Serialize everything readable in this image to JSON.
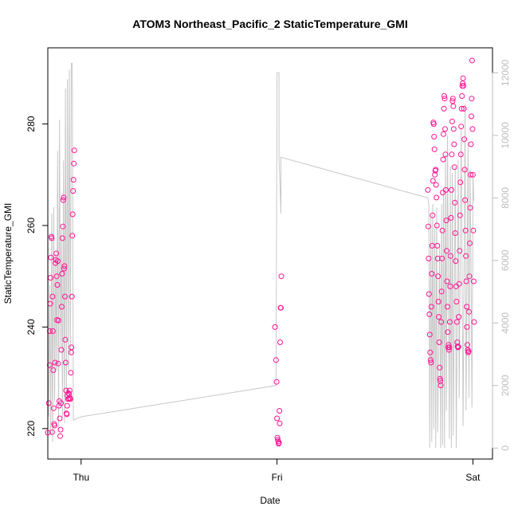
{
  "chart_data": {
    "type": "scatter",
    "title": "ATOM3 Northeast_Pacific_2 StaticTemperature_GMI",
    "xlabel": "Date",
    "ylabel": "StaticTemperature_GMI",
    "x_ticks": [
      {
        "label": "Thu",
        "day": 0
      },
      {
        "label": "Fri",
        "day": 1
      },
      {
        "label": "Sat",
        "day": 2
      }
    ],
    "xlim_days": [
      -0.17,
      2.1
    ],
    "ylim": [
      214,
      295
    ],
    "y_ticks": [
      220,
      240,
      260,
      280
    ],
    "y2lim": [
      -350,
      12800
    ],
    "y2_ticks": [
      0,
      2000,
      4000,
      6000,
      8000,
      10000,
      12000
    ],
    "colors": {
      "points": "#ff1493",
      "line": "#c8c8c8",
      "axis": "#000000",
      "axis_right": "#bdbdbd"
    },
    "series": [
      {
        "kind": "points",
        "points": [
          [
            -0.17,
            219.2
          ],
          [
            -0.165,
            225.0
          ],
          [
            -0.16,
            232.5
          ],
          [
            -0.16,
            239.2
          ],
          [
            -0.158,
            244.6
          ],
          [
            -0.156,
            249.7
          ],
          [
            -0.154,
            253.7
          ],
          [
            -0.152,
            257.8
          ],
          [
            -0.15,
            257.5
          ],
          [
            -0.148,
            219.3
          ],
          [
            -0.146,
            246.0
          ],
          [
            -0.144,
            239.2
          ],
          [
            -0.142,
            231.5
          ],
          [
            -0.14,
            224.0
          ],
          [
            -0.138,
            220.9
          ],
          [
            -0.135,
            220.6
          ],
          [
            -0.133,
            233.0
          ],
          [
            -0.131,
            252.6
          ],
          [
            -0.129,
            253.2
          ],
          [
            -0.127,
            254.5
          ],
          [
            -0.125,
            250.0
          ],
          [
            -0.123,
            241.4
          ],
          [
            -0.121,
            248.3
          ],
          [
            -0.119,
            253.0
          ],
          [
            -0.117,
            232.8
          ],
          [
            -0.115,
            241.3
          ],
          [
            -0.113,
            224.5
          ],
          [
            -0.111,
            225.4
          ],
          [
            -0.109,
            222.0
          ],
          [
            -0.107,
            218.5
          ],
          [
            -0.105,
            219.8
          ],
          [
            -0.103,
            225.0
          ],
          [
            -0.101,
            235.5
          ],
          [
            -0.099,
            244.0
          ],
          [
            -0.097,
            250.5
          ],
          [
            -0.095,
            257.5
          ],
          [
            -0.093,
            259.8
          ],
          [
            -0.091,
            265.0
          ],
          [
            -0.089,
            265.5
          ],
          [
            -0.087,
            251.5
          ],
          [
            -0.085,
            252.0
          ],
          [
            -0.083,
            246.0
          ],
          [
            -0.081,
            237.5
          ],
          [
            -0.079,
            233.0
          ],
          [
            -0.077,
            227.5
          ],
          [
            -0.075,
            223.0
          ],
          [
            -0.073,
            222.8
          ],
          [
            -0.071,
            224.5
          ],
          [
            -0.069,
            226.5
          ],
          [
            -0.067,
            225.8
          ],
          [
            -0.065,
            227.0
          ],
          [
            -0.063,
            225.9
          ],
          [
            -0.061,
            226.8
          ],
          [
            -0.059,
            227.5
          ],
          [
            -0.057,
            226.0
          ],
          [
            -0.055,
            225.8
          ],
          [
            -0.053,
            231.0
          ],
          [
            -0.051,
            235.0
          ],
          [
            -0.049,
            236.0
          ],
          [
            -0.047,
            246.0
          ],
          [
            -0.045,
            258.0
          ],
          [
            -0.043,
            262.2
          ],
          [
            -0.041,
            266.8
          ],
          [
            -0.039,
            269.0
          ],
          [
            -0.037,
            272.2
          ],
          [
            -0.035,
            274.8
          ],
          [
            0.99,
            240.0
          ],
          [
            0.995,
            233.5
          ],
          [
            0.998,
            229.2
          ],
          [
            1.0,
            222.0
          ],
          [
            1.002,
            218.2
          ],
          [
            1.004,
            217.8
          ],
          [
            1.006,
            217.5
          ],
          [
            1.008,
            217.0
          ],
          [
            1.01,
            217.2
          ],
          [
            1.012,
            223.5
          ],
          [
            1.014,
            221.0
          ],
          [
            1.016,
            237.0
          ],
          [
            1.018,
            243.8
          ],
          [
            1.02,
            243.8
          ],
          [
            1.022,
            250.0
          ],
          [
            1.77,
            267.0
          ],
          [
            1.772,
            259.8
          ],
          [
            1.774,
            253.5
          ],
          [
            1.776,
            246.5
          ],
          [
            1.778,
            242.5
          ],
          [
            1.78,
            238.5
          ],
          [
            1.782,
            235.0
          ],
          [
            1.784,
            233.5
          ],
          [
            1.786,
            233.0
          ],
          [
            1.788,
            244.0
          ],
          [
            1.79,
            250.5
          ],
          [
            1.792,
            256.0
          ],
          [
            1.794,
            262.0
          ],
          [
            1.796,
            268.8
          ],
          [
            1.798,
            280.3
          ],
          [
            1.8,
            280.0
          ],
          [
            1.802,
            277.5
          ],
          [
            1.804,
            275.0
          ],
          [
            1.806,
            270.0
          ],
          [
            1.808,
            270.8
          ],
          [
            1.81,
            271.0
          ],
          [
            1.812,
            268.0
          ],
          [
            1.814,
            265.5
          ],
          [
            1.816,
            260.0
          ],
          [
            1.818,
            256.0
          ],
          [
            1.82,
            253.5
          ],
          [
            1.822,
            250.0
          ],
          [
            1.824,
            245.0
          ],
          [
            1.826,
            242.0
          ],
          [
            1.828,
            237.0
          ],
          [
            1.83,
            232.0
          ],
          [
            1.832,
            229.8
          ],
          [
            1.834,
            229.4
          ],
          [
            1.836,
            228.5
          ],
          [
            1.838,
            241.0
          ],
          [
            1.84,
            247.0
          ],
          [
            1.842,
            253.5
          ],
          [
            1.844,
            259.0
          ],
          [
            1.846,
            266.5
          ],
          [
            1.848,
            273.0
          ],
          [
            1.85,
            278.0
          ],
          [
            1.852,
            283.0
          ],
          [
            1.854,
            285.5
          ],
          [
            1.856,
            285.0
          ],
          [
            1.858,
            279.0
          ],
          [
            1.86,
            274.0
          ],
          [
            1.862,
            267.0
          ],
          [
            1.864,
            261.0
          ],
          [
            1.866,
            255.0
          ],
          [
            1.868,
            249.0
          ],
          [
            1.87,
            244.0
          ],
          [
            1.872,
            239.0
          ],
          [
            1.874,
            236.0
          ],
          [
            1.876,
            236.5
          ],
          [
            1.878,
            235.5
          ],
          [
            1.88,
            236.0
          ],
          [
            1.882,
            241.0
          ],
          [
            1.884,
            248.0
          ],
          [
            1.886,
            254.0
          ],
          [
            1.888,
            261.5
          ],
          [
            1.89,
            267.0
          ],
          [
            1.892,
            274.0
          ],
          [
            1.894,
            280.5
          ],
          [
            1.896,
            284.5
          ],
          [
            1.898,
            285.0
          ],
          [
            1.9,
            283.5
          ],
          [
            1.902,
            279.0
          ],
          [
            1.904,
            276.0
          ],
          [
            1.906,
            271.5
          ],
          [
            1.908,
            264.5
          ],
          [
            1.91,
            258.5
          ],
          [
            1.912,
            253.0
          ],
          [
            1.914,
            248.0
          ],
          [
            1.916,
            245.0
          ],
          [
            1.918,
            241.0
          ],
          [
            1.92,
            237.0
          ],
          [
            1.922,
            236.2
          ],
          [
            1.924,
            236.0
          ],
          [
            1.926,
            236.1
          ],
          [
            1.928,
            242.0
          ],
          [
            1.93,
            248.5
          ],
          [
            1.932,
            255.0
          ],
          [
            1.934,
            262.0
          ],
          [
            1.936,
            268.5
          ],
          [
            1.938,
            274.0
          ],
          [
            1.94,
            279.5
          ],
          [
            1.942,
            283.0
          ],
          [
            1.944,
            285.5
          ],
          [
            1.946,
            287.5
          ],
          [
            1.948,
            288.0
          ],
          [
            1.95,
            289.0
          ],
          [
            1.952,
            287.5
          ],
          [
            1.954,
            283.0
          ],
          [
            1.956,
            277.0
          ],
          [
            1.958,
            271.0
          ],
          [
            1.96,
            265.0
          ],
          [
            1.962,
            259.0
          ],
          [
            1.964,
            254.0
          ],
          [
            1.966,
            249.0
          ],
          [
            1.968,
            244.0
          ],
          [
            1.97,
            240.0
          ],
          [
            1.972,
            236.5
          ],
          [
            1.974,
            235.5
          ],
          [
            1.976,
            235.0
          ],
          [
            1.978,
            235.2
          ],
          [
            1.98,
            243.0
          ],
          [
            1.982,
            250.0
          ],
          [
            1.984,
            256.5
          ],
          [
            1.986,
            263.5
          ],
          [
            1.988,
            270.0
          ],
          [
            1.99,
            276.0
          ],
          [
            1.992,
            281.5
          ],
          [
            1.994,
            285.0
          ],
          [
            1.996,
            292.5
          ],
          [
            1.998,
            279.0
          ],
          [
            2.0,
            270.0
          ],
          [
            2.002,
            259.0
          ],
          [
            2.004,
            249.0
          ],
          [
            2.006,
            241.0
          ]
        ]
      },
      {
        "kind": "line",
        "y_axis": "right",
        "points": [
          [
            -0.17,
            7500
          ],
          [
            -0.165,
            1000
          ],
          [
            -0.16,
            5200
          ],
          [
            -0.155,
            400
          ],
          [
            -0.15,
            7500
          ],
          [
            -0.145,
            200
          ],
          [
            -0.14,
            7700
          ],
          [
            -0.135,
            1500
          ],
          [
            -0.13,
            6200
          ],
          [
            -0.125,
            2500
          ],
          [
            -0.12,
            9500
          ],
          [
            -0.115,
            600
          ],
          [
            -0.11,
            10500
          ],
          [
            -0.105,
            3200
          ],
          [
            -0.1,
            7000
          ],
          [
            -0.095,
            1000
          ],
          [
            -0.09,
            9200
          ],
          [
            -0.085,
            800
          ],
          [
            -0.08,
            11500
          ],
          [
            -0.075,
            1800
          ],
          [
            -0.07,
            11800
          ],
          [
            -0.065,
            2500
          ],
          [
            -0.06,
            12100
          ],
          [
            -0.055,
            3000
          ],
          [
            -0.05,
            12300
          ],
          [
            -0.045,
            12300
          ],
          [
            -0.04,
            900
          ],
          [
            0.0,
            1000
          ],
          [
            0.995,
            2000
          ],
          [
            1.0,
            12000
          ],
          [
            1.01,
            12000
          ],
          [
            1.01,
            9300
          ],
          [
            1.02,
            7500
          ],
          [
            1.02,
            9300
          ],
          [
            1.77,
            8000
          ],
          [
            1.775,
            7800
          ],
          [
            1.78,
            0
          ],
          [
            1.785,
            7400
          ],
          [
            1.79,
            200
          ],
          [
            1.795,
            7800
          ],
          [
            1.8,
            600
          ],
          [
            1.805,
            7000
          ],
          [
            1.81,
            0
          ],
          [
            1.815,
            7700
          ],
          [
            1.82,
            500
          ],
          [
            1.83,
            6500
          ],
          [
            1.835,
            0
          ],
          [
            1.84,
            7800
          ],
          [
            1.845,
            100
          ],
          [
            1.85,
            8300
          ],
          [
            1.855,
            0
          ],
          [
            1.86,
            9400
          ],
          [
            1.865,
            1200
          ],
          [
            1.87,
            10000
          ],
          [
            1.88,
            300
          ],
          [
            1.885,
            9000
          ],
          [
            1.89,
            0
          ],
          [
            1.895,
            8800
          ],
          [
            1.9,
            400
          ],
          [
            1.91,
            9000
          ],
          [
            1.915,
            0
          ],
          [
            1.925,
            9200
          ],
          [
            1.93,
            1600
          ],
          [
            1.94,
            10200
          ],
          [
            1.95,
            700
          ],
          [
            1.96,
            11000
          ],
          [
            1.965,
            1200
          ],
          [
            1.975,
            9800
          ],
          [
            1.98,
            1600
          ],
          [
            1.985,
            8900
          ],
          [
            1.99,
            6000
          ],
          [
            1.995,
            1300
          ],
          [
            2.0,
            7000
          ],
          [
            2.0,
            8800
          ],
          [
            2.005,
            7900
          ]
        ]
      }
    ]
  }
}
